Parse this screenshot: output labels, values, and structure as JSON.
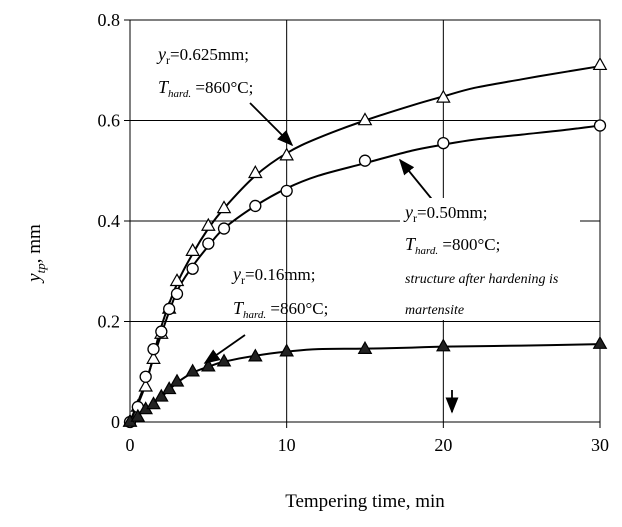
{
  "chart_data": {
    "type": "line",
    "title": "",
    "xlabel": "Tempering time, min",
    "ylabel": {
      "main": "y",
      "sub": "tp",
      "rest": ", mm"
    },
    "xlim": [
      0,
      30
    ],
    "ylim": [
      0,
      0.8
    ],
    "xticks": [
      0,
      10,
      20,
      30
    ],
    "yticks": [
      0,
      0.2,
      0.4,
      0.6,
      0.8
    ],
    "xtick_labels": [
      "0",
      "10",
      "20",
      "30"
    ],
    "ytick_labels": [
      "0",
      "0.2",
      "0.4",
      "0.6",
      "0.8"
    ],
    "grid": true,
    "series": [
      {
        "marker": "open-triangle",
        "x": [
          0,
          0.5,
          1,
          1.5,
          2,
          2.5,
          3,
          4,
          5,
          6,
          8,
          10,
          15,
          20,
          30
        ],
        "y": [
          0,
          0.03,
          0.07,
          0.125,
          0.175,
          0.225,
          0.28,
          0.34,
          0.39,
          0.425,
          0.495,
          0.53,
          0.6,
          0.645,
          0.71
        ],
        "curve_x": [
          0,
          1,
          2,
          3,
          4,
          5,
          6,
          8,
          10,
          12,
          15,
          18,
          20,
          22,
          25,
          28,
          30
        ],
        "curve_y": [
          0,
          0.075,
          0.19,
          0.275,
          0.335,
          0.385,
          0.425,
          0.49,
          0.535,
          0.565,
          0.6,
          0.63,
          0.648,
          0.665,
          0.682,
          0.698,
          0.708
        ]
      },
      {
        "marker": "open-circle",
        "x": [
          0,
          0.5,
          1,
          1.5,
          2,
          2.5,
          3,
          4,
          5,
          6,
          8,
          10,
          15,
          20,
          30
        ],
        "y": [
          0,
          0.03,
          0.09,
          0.145,
          0.18,
          0.225,
          0.255,
          0.305,
          0.355,
          0.385,
          0.43,
          0.46,
          0.52,
          0.555,
          0.59
        ],
        "curve_x": [
          0,
          1,
          2,
          3,
          4,
          5,
          6,
          8,
          10,
          12,
          15,
          18,
          20,
          22,
          25,
          28,
          30
        ],
        "curve_y": [
          0,
          0.08,
          0.175,
          0.26,
          0.31,
          0.35,
          0.385,
          0.43,
          0.465,
          0.49,
          0.515,
          0.54,
          0.552,
          0.562,
          0.572,
          0.582,
          0.59
        ]
      },
      {
        "marker": "filled-triangle",
        "x": [
          0,
          0.5,
          1,
          1.5,
          2,
          2.5,
          3,
          4,
          5,
          6,
          8,
          10,
          15,
          20,
          30
        ],
        "y": [
          0,
          0.01,
          0.025,
          0.035,
          0.05,
          0.065,
          0.08,
          0.1,
          0.11,
          0.12,
          0.13,
          0.14,
          0.145,
          0.15,
          0.155
        ],
        "curve_x": [
          0,
          1,
          2,
          3,
          4,
          5,
          6,
          8,
          10,
          12,
          15,
          18,
          20,
          25,
          30
        ],
        "curve_y": [
          0,
          0.025,
          0.05,
          0.078,
          0.098,
          0.11,
          0.12,
          0.132,
          0.14,
          0.145,
          0.146,
          0.148,
          0.15,
          0.152,
          0.155
        ]
      }
    ],
    "annotations": [
      {
        "id": "anno-a",
        "lines": [
          {
            "parts": [
              {
                "t": "y",
                "style": "italic"
              },
              {
                "t": "r",
                "style": "sub"
              },
              {
                "t": "=0.625mm;",
                "style": "normal"
              }
            ]
          },
          {
            "parts": [
              {
                "t": "T",
                "style": "italic"
              },
              {
                "t": "hard.",
                "style": "subitalic"
              },
              {
                "t": " =860°C;",
                "style": "normal"
              }
            ]
          }
        ]
      },
      {
        "id": "anno-b",
        "lines": [
          {
            "parts": [
              {
                "t": "y",
                "style": "italic"
              },
              {
                "t": "r",
                "style": "sub"
              },
              {
                "t": "=0.50mm;",
                "style": "normal"
              }
            ]
          },
          {
            "parts": [
              {
                "t": "T",
                "style": "italic"
              },
              {
                "t": "hard.",
                "style": "subitalic"
              },
              {
                "t": " =800°C;",
                "style": "normal"
              }
            ]
          },
          {
            "parts": [
              {
                "t": "structure after hardening is",
                "style": "smallitalic"
              }
            ]
          },
          {
            "parts": [
              {
                "t": "martensite",
                "style": "smallitalic"
              }
            ]
          }
        ]
      },
      {
        "id": "anno-c",
        "lines": [
          {
            "parts": [
              {
                "t": "y",
                "style": "italic"
              },
              {
                "t": "r",
                "style": "sub"
              },
              {
                "t": "=0.16mm;",
                "style": "normal"
              }
            ]
          },
          {
            "parts": [
              {
                "t": "T",
                "style": "italic"
              },
              {
                "t": "hard.",
                "style": "subitalic"
              },
              {
                "t": " =860°C;",
                "style": "normal"
              }
            ]
          }
        ]
      }
    ]
  }
}
